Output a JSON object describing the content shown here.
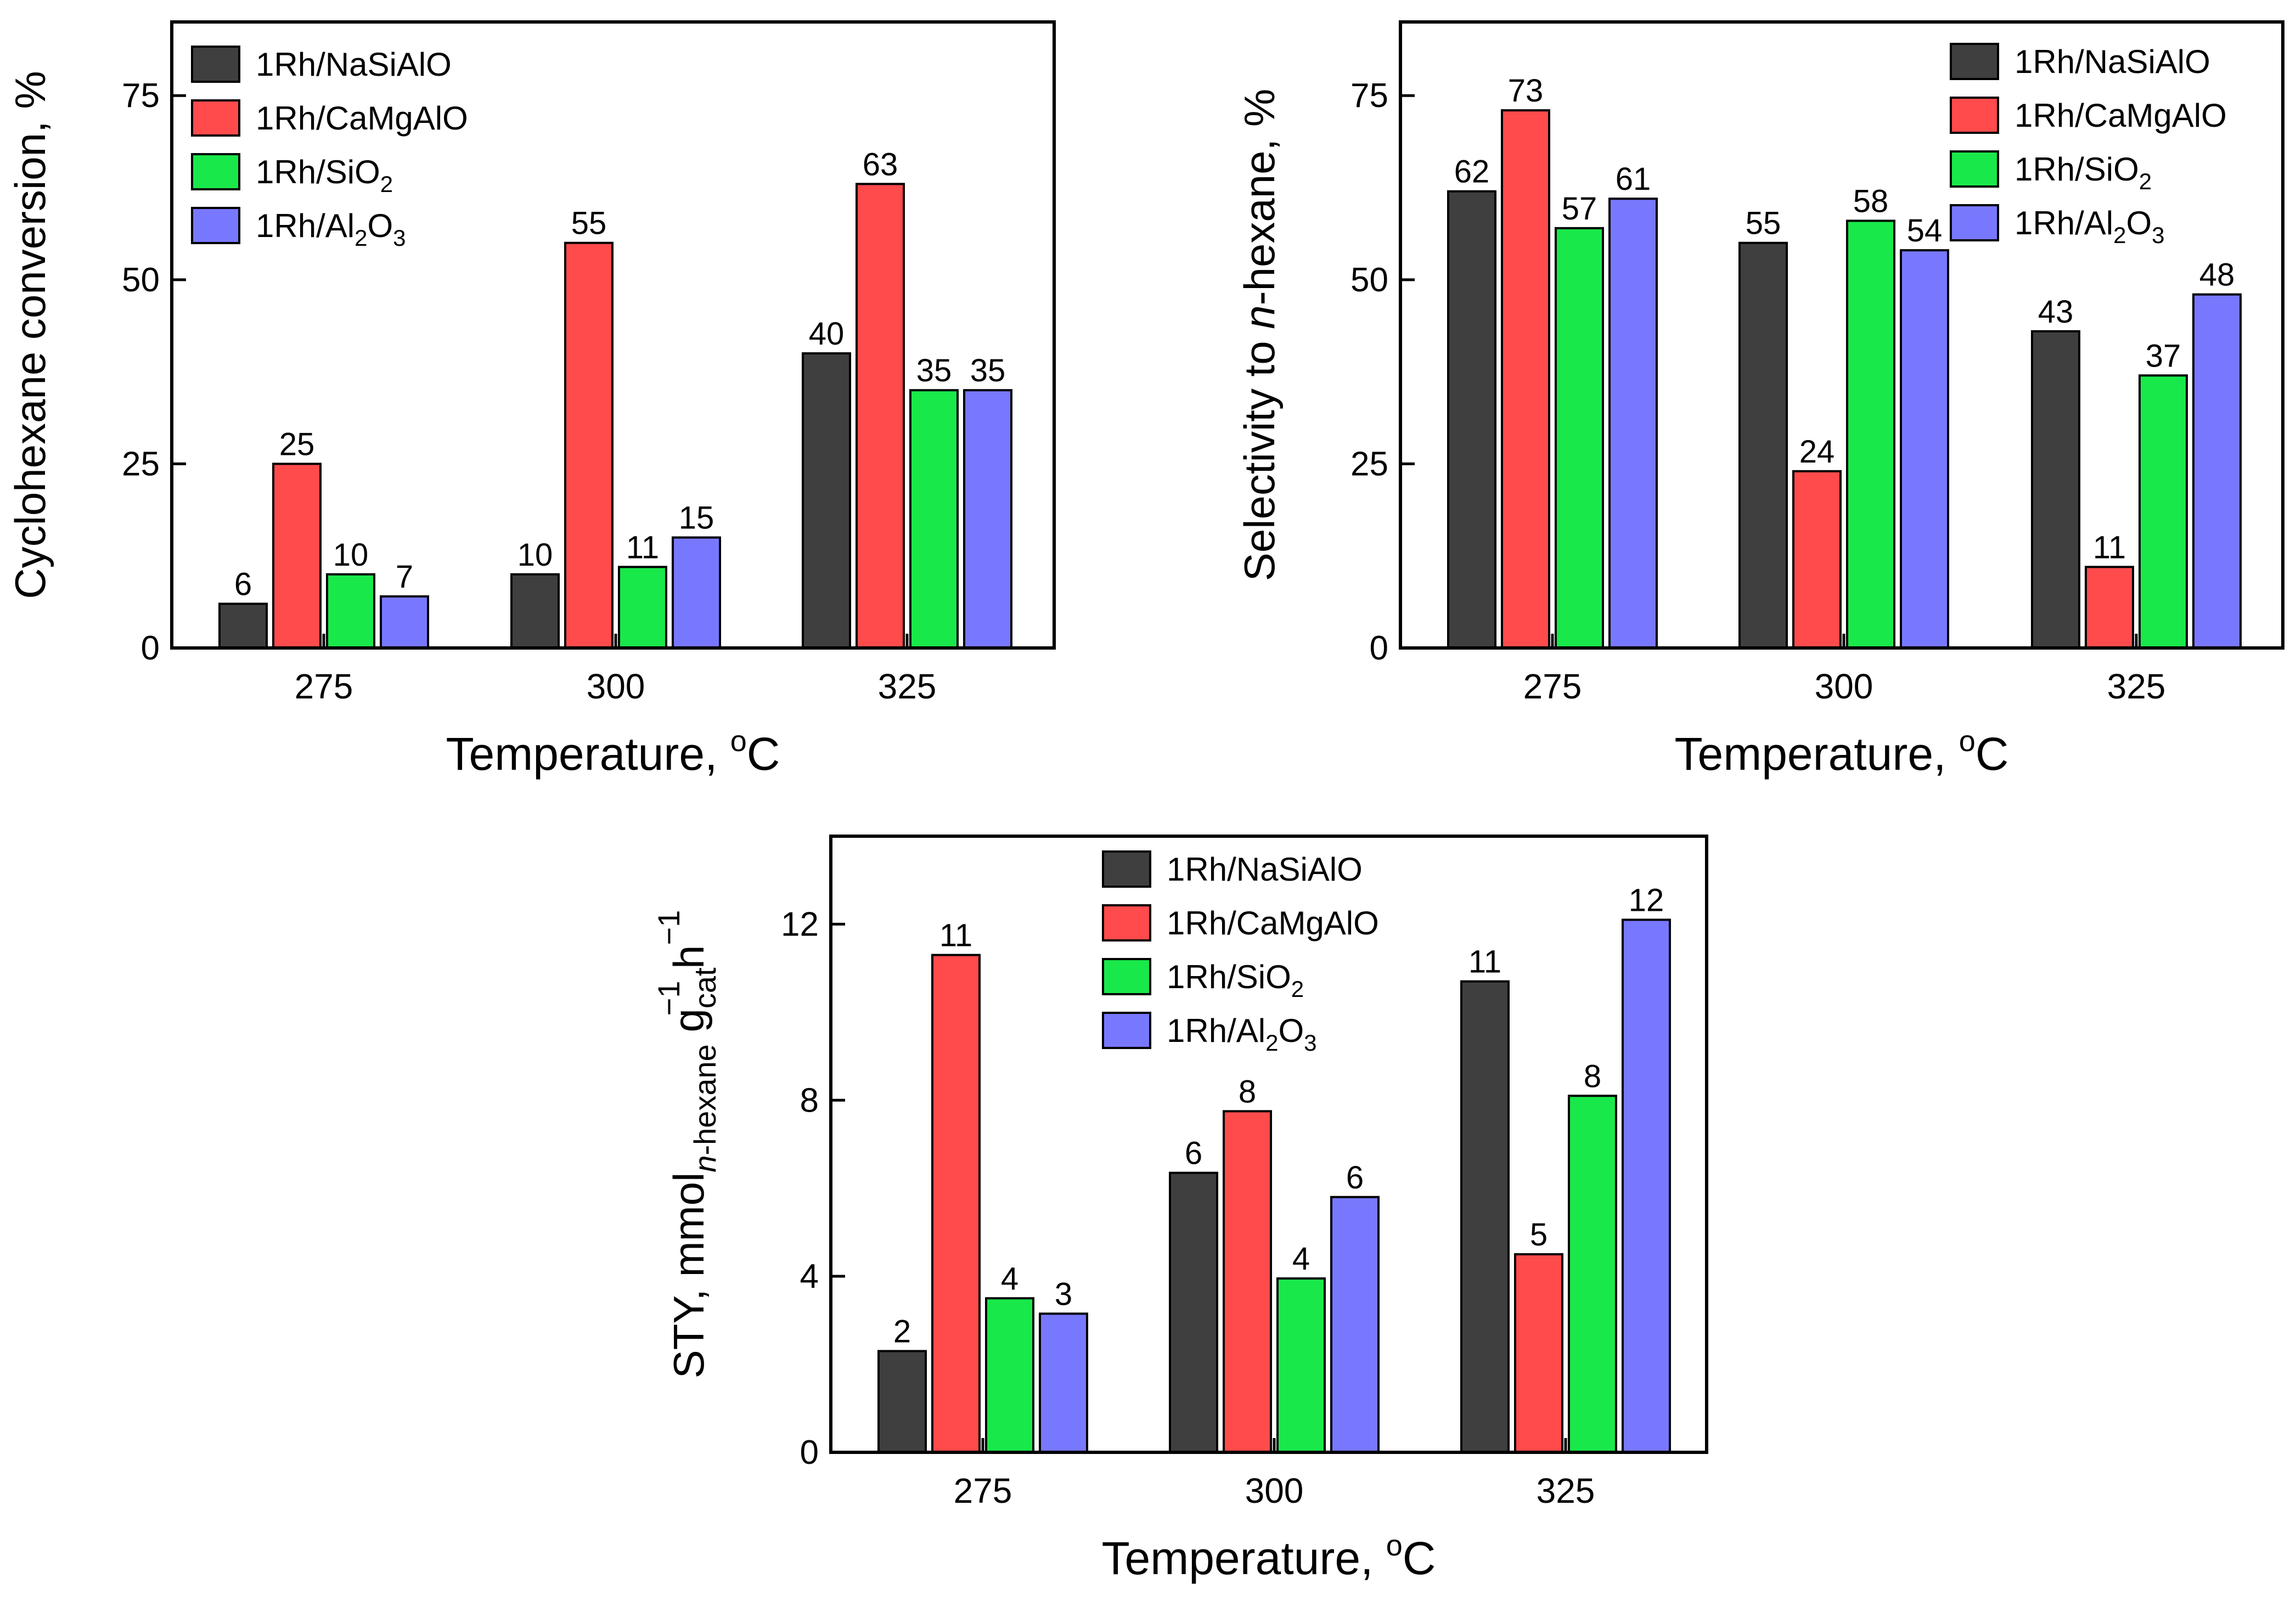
{
  "chart_data": [
    {
      "type": "bar",
      "title": "",
      "xlabel": "Temperature, °C",
      "xlabel_main": "Temperature, ",
      "xlabel_sup": "o",
      "xlabel_tail": "C",
      "ylabel": "Cyclohexane conversion, %",
      "categories": [
        "275",
        "300",
        "325"
      ],
      "ylim": [
        0,
        85
      ],
      "yticks": [
        0,
        25,
        50,
        75
      ],
      "series": [
        {
          "name": "1Rh/NaSiAlO",
          "values": [
            6,
            10,
            40
          ],
          "labels": [
            "6",
            "10",
            "40"
          ]
        },
        {
          "name": "1Rh/CaMgAlO",
          "values": [
            25,
            55,
            63
          ],
          "labels": [
            "25",
            "55",
            "63"
          ]
        },
        {
          "name": "1Rh/SiO2",
          "values": [
            10,
            11,
            35
          ],
          "labels": [
            "10",
            "11",
            "35"
          ]
        },
        {
          "name": "1Rh/Al2O3",
          "values": [
            7,
            15,
            35
          ],
          "labels": [
            "7",
            "15",
            "35"
          ]
        }
      ],
      "legend_position": "top-left"
    },
    {
      "type": "bar",
      "title": "",
      "xlabel": "Temperature, °C",
      "xlabel_main": "Temperature, ",
      "xlabel_sup": "o",
      "xlabel_tail": "C",
      "ylabel": "Selectivity to n-hexane, %",
      "ylabel_pre": "Selectivity to ",
      "ylabel_italic": "n",
      "ylabel_post": "-hexane, %",
      "categories": [
        "275",
        "300",
        "325"
      ],
      "ylim": [
        0,
        85
      ],
      "yticks": [
        0,
        25,
        50,
        75
      ],
      "series": [
        {
          "name": "1Rh/NaSiAlO",
          "values": [
            62,
            55,
            43
          ],
          "labels": [
            "62",
            "55",
            "43"
          ]
        },
        {
          "name": "1Rh/CaMgAlO",
          "values": [
            73,
            24,
            11
          ],
          "labels": [
            "73",
            "24",
            "11"
          ]
        },
        {
          "name": "1Rh/SiO2",
          "values": [
            57,
            58,
            37
          ],
          "labels": [
            "57",
            "58",
            "37"
          ]
        },
        {
          "name": "1Rh/Al2O3",
          "values": [
            61,
            54,
            48
          ],
          "labels": [
            "61",
            "54",
            "48"
          ]
        }
      ],
      "legend_position": "top-right"
    },
    {
      "type": "bar",
      "title": "",
      "xlabel": "Temperature, °C",
      "xlabel_main": "Temperature, ",
      "xlabel_sup": "o",
      "xlabel_tail": "C",
      "ylabel": "STY, mmol n-hexane g cat -1 h -1",
      "ylabel_parts": {
        "a": "STY, mmol",
        "sub_italic": "n",
        "sub_rest": "-hexane",
        "g": " g",
        "sub_cat": "cat",
        "sup1": "−1",
        "h": " h",
        "sup2": "−1"
      },
      "categories": [
        "275",
        "300",
        "325"
      ],
      "ylim": [
        0,
        14
      ],
      "yticks": [
        0,
        4,
        8,
        12
      ],
      "series": [
        {
          "name": "1Rh/NaSiAlO",
          "values": [
            2.3,
            6.35,
            10.7
          ],
          "labels": [
            "2",
            "6",
            "11"
          ]
        },
        {
          "name": "1Rh/CaMgAlO",
          "values": [
            11.3,
            7.75,
            4.5
          ],
          "labels": [
            "11",
            "8",
            "5"
          ]
        },
        {
          "name": "1Rh/SiO2",
          "values": [
            3.5,
            3.95,
            8.1
          ],
          "labels": [
            "4",
            "4",
            "8"
          ]
        },
        {
          "name": "1Rh/Al2O3",
          "values": [
            3.15,
            5.8,
            12.1
          ],
          "labels": [
            "3",
            "6",
            "12"
          ]
        }
      ],
      "legend_position": "top-center"
    }
  ],
  "legend_text": [
    {
      "base": "1Rh/NaSiAlO",
      "sub1": "",
      "mid": "",
      "sub2": ""
    },
    {
      "base": "1Rh/CaMgAlO",
      "sub1": "",
      "mid": "",
      "sub2": ""
    },
    {
      "base": "1Rh/SiO",
      "sub1": "2",
      "mid": "",
      "sub2": ""
    },
    {
      "base": "1Rh/Al",
      "sub1": "2",
      "mid": "O",
      "sub2": "3"
    }
  ],
  "colors": {
    "series": [
      "#3f3f3f",
      "#ff4b4b",
      "#19e84a",
      "#7878ff"
    ],
    "axis": "#000000"
  }
}
